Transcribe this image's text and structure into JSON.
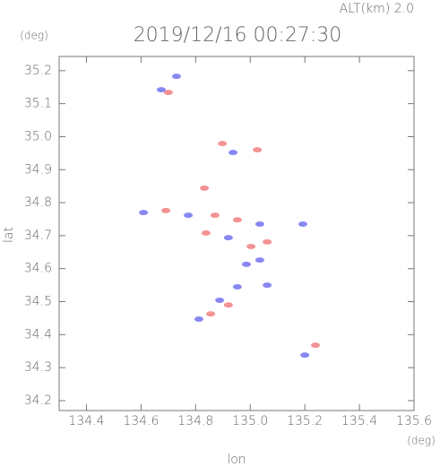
{
  "chart_data": {
    "type": "scatter",
    "title": "2019/12/16 00:27:30",
    "subtitle": "ALT(km) 2.0",
    "x_label": "lon",
    "x_unit": "(deg)",
    "y_label": "lat",
    "y_unit": "(deg)",
    "xlim": [
      134.3,
      135.6
    ],
    "ylim": [
      34.17,
      35.243
    ],
    "xticks": [
      134.4,
      134.6,
      134.8,
      {
        "value": 135.0,
        "label": "135.0"
      },
      135.2,
      135.4,
      135.6
    ],
    "yticks": [
      34.2,
      34.3,
      34.4,
      34.5,
      34.6,
      34.7,
      34.8,
      34.9,
      {
        "value": 35.0,
        "label": "35.0"
      },
      35.1,
      35.2
    ],
    "series": [
      {
        "color": "#f07878",
        "x": [
          134.7,
          134.898,
          135.026,
          134.832,
          134.691,
          134.871,
          134.953,
          134.838,
          135.003,
          135.062,
          134.92,
          134.855,
          135.239
        ],
        "y": [
          35.134,
          34.979,
          34.96,
          34.844,
          34.776,
          34.762,
          34.748,
          34.708,
          34.667,
          34.681,
          34.49,
          34.463,
          34.368
        ]
      },
      {
        "color": "#6a6af0",
        "x": [
          134.674,
          134.73,
          134.937,
          134.609,
          134.773,
          135.035,
          134.92,
          134.986,
          135.035,
          135.062,
          134.953,
          134.888,
          134.812,
          135.193,
          135.2
        ],
        "y": [
          35.142,
          35.183,
          34.952,
          34.77,
          34.762,
          34.735,
          34.694,
          34.613,
          34.626,
          34.55,
          34.545,
          34.504,
          34.447,
          34.735,
          34.338
        ]
      }
    ]
  }
}
